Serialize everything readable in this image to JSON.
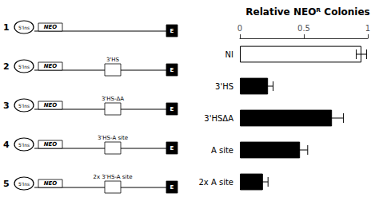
{
  "chart_data": {
    "type": "bar",
    "orientation": "horizontal",
    "title": "Relative NEOᴿ Colonies",
    "categories": [
      "NI",
      "3'HS",
      "3'HSΔA",
      "A site",
      "2x A site"
    ],
    "values": [
      0.95,
      0.22,
      0.72,
      0.47,
      0.18
    ],
    "errors": [
      0.04,
      0.04,
      0.09,
      0.06,
      0.04
    ],
    "colors": [
      "white",
      "black",
      "black",
      "black",
      "black"
    ],
    "xlim": [
      0,
      1.0
    ],
    "xticks": [
      0,
      0.5,
      1
    ],
    "grid": false,
    "annotations": [
      {
        "label": "1",
        "texts": [
          "5'Ins",
          "NEO",
          "E"
        ]
      },
      {
        "label": "2",
        "texts": [
          "5'Ins",
          "NEO",
          "3'HS",
          "E"
        ]
      },
      {
        "label": "3",
        "texts": [
          "5'Ins",
          "NEO",
          "3'HS-ΔA",
          "E"
        ]
      },
      {
        "label": "4",
        "texts": [
          "5'Ins",
          "NEO",
          "3'HS-A site",
          "E"
        ]
      },
      {
        "label": "5",
        "texts": [
          "5'Ins",
          "NEO",
          "2x 3'HS-A site",
          "E"
        ]
      }
    ]
  }
}
